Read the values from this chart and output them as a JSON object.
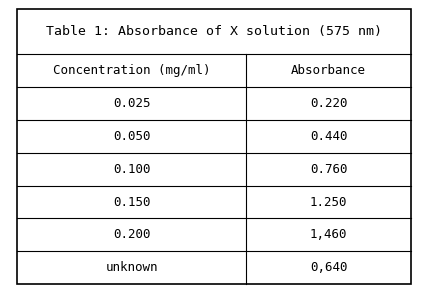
{
  "title_parts": [
    {
      "text": "Table 1",
      "underline": true,
      "bold": false
    },
    {
      "text": ": ",
      "underline": false,
      "bold": false
    },
    {
      "text": "Absorbance",
      "underline": true,
      "bold": false
    },
    {
      "text": " of X ",
      "underline": false,
      "bold": false
    },
    {
      "text": "solution",
      "underline": true,
      "bold": false
    },
    {
      "text": " (575 ",
      "underline": false,
      "bold": false
    },
    {
      "text": "nm",
      "underline": true,
      "bold": false
    },
    {
      "text": ")",
      "underline": false,
      "bold": false
    }
  ],
  "title_text": "Table 1: Absorbance of X solution (575 nm)",
  "col_headers": [
    "Concentration (mg/ml)",
    "Absorbance"
  ],
  "rows": [
    [
      "0.025",
      "0.220"
    ],
    [
      "0.050",
      "0.440"
    ],
    [
      "0.100",
      "0.760"
    ],
    [
      "0.150",
      "1.250"
    ],
    [
      "0.200",
      "1,460"
    ],
    [
      "unknown",
      "0,640"
    ]
  ],
  "font_family": "monospace",
  "font_size": 9,
  "title_font_size": 9.5,
  "header_font_size": 9,
  "bg_color": "#ffffff",
  "border_color": "#000000",
  "text_color": "#000000",
  "title_bg": "#ffffff",
  "col_split": 0.58
}
